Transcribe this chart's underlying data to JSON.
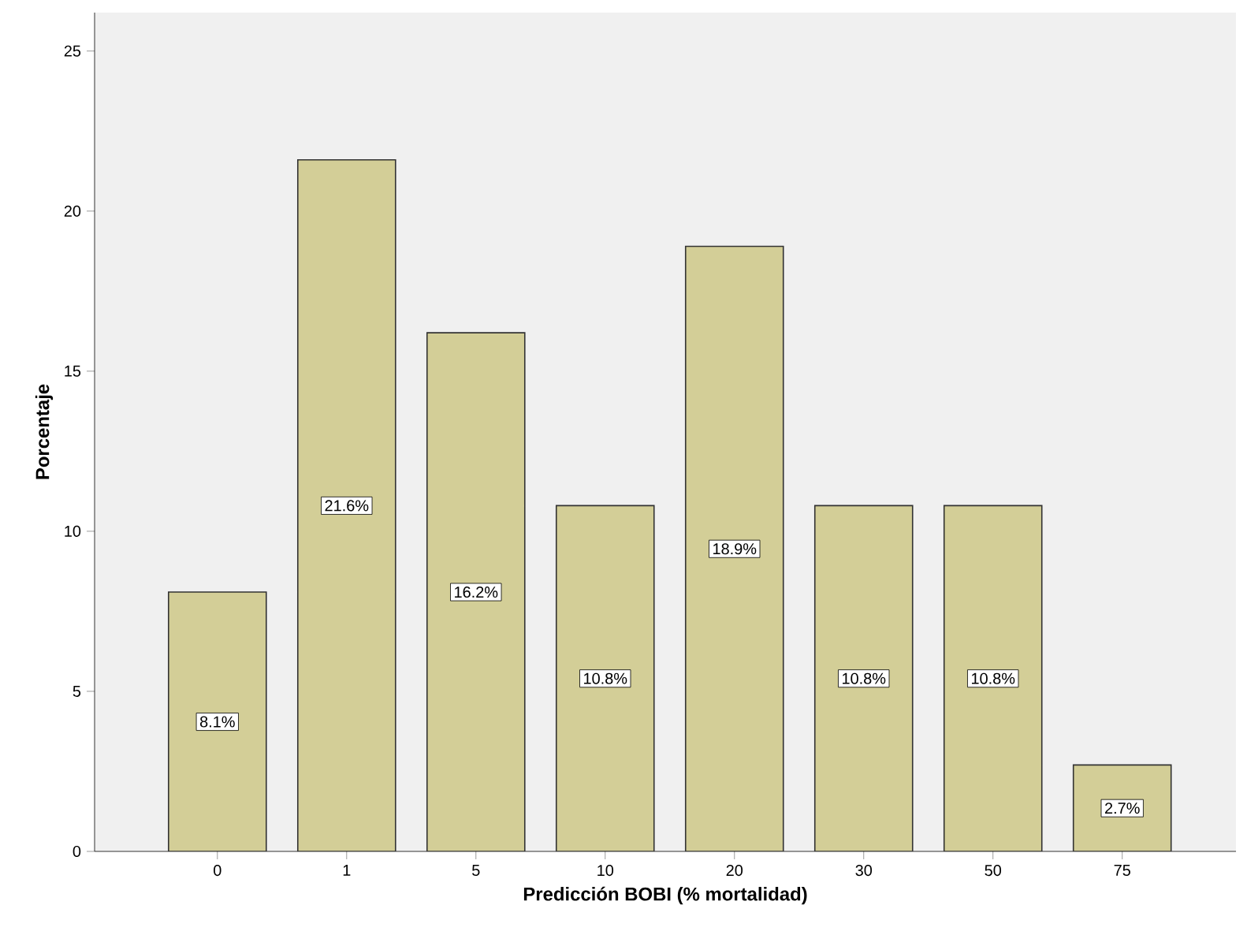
{
  "chart_data": {
    "type": "bar",
    "xlabel": "Predicción BOBI (% mortalidad)",
    "ylabel": "Porcentaje",
    "categories": [
      "0",
      "1",
      "5",
      "10",
      "20",
      "30",
      "50",
      "75"
    ],
    "values": [
      8.1,
      21.6,
      16.2,
      10.8,
      18.9,
      10.8,
      10.8,
      2.7
    ],
    "value_labels": [
      "8.1%",
      "21.6%",
      "16.2%",
      "10.8%",
      "18.9%",
      "10.8%",
      "10.8%",
      "2.7%"
    ],
    "color": "#d3ce97",
    "ylim": [
      0,
      26.2
    ],
    "yticks": [
      0,
      5,
      10,
      15,
      20,
      25
    ]
  }
}
